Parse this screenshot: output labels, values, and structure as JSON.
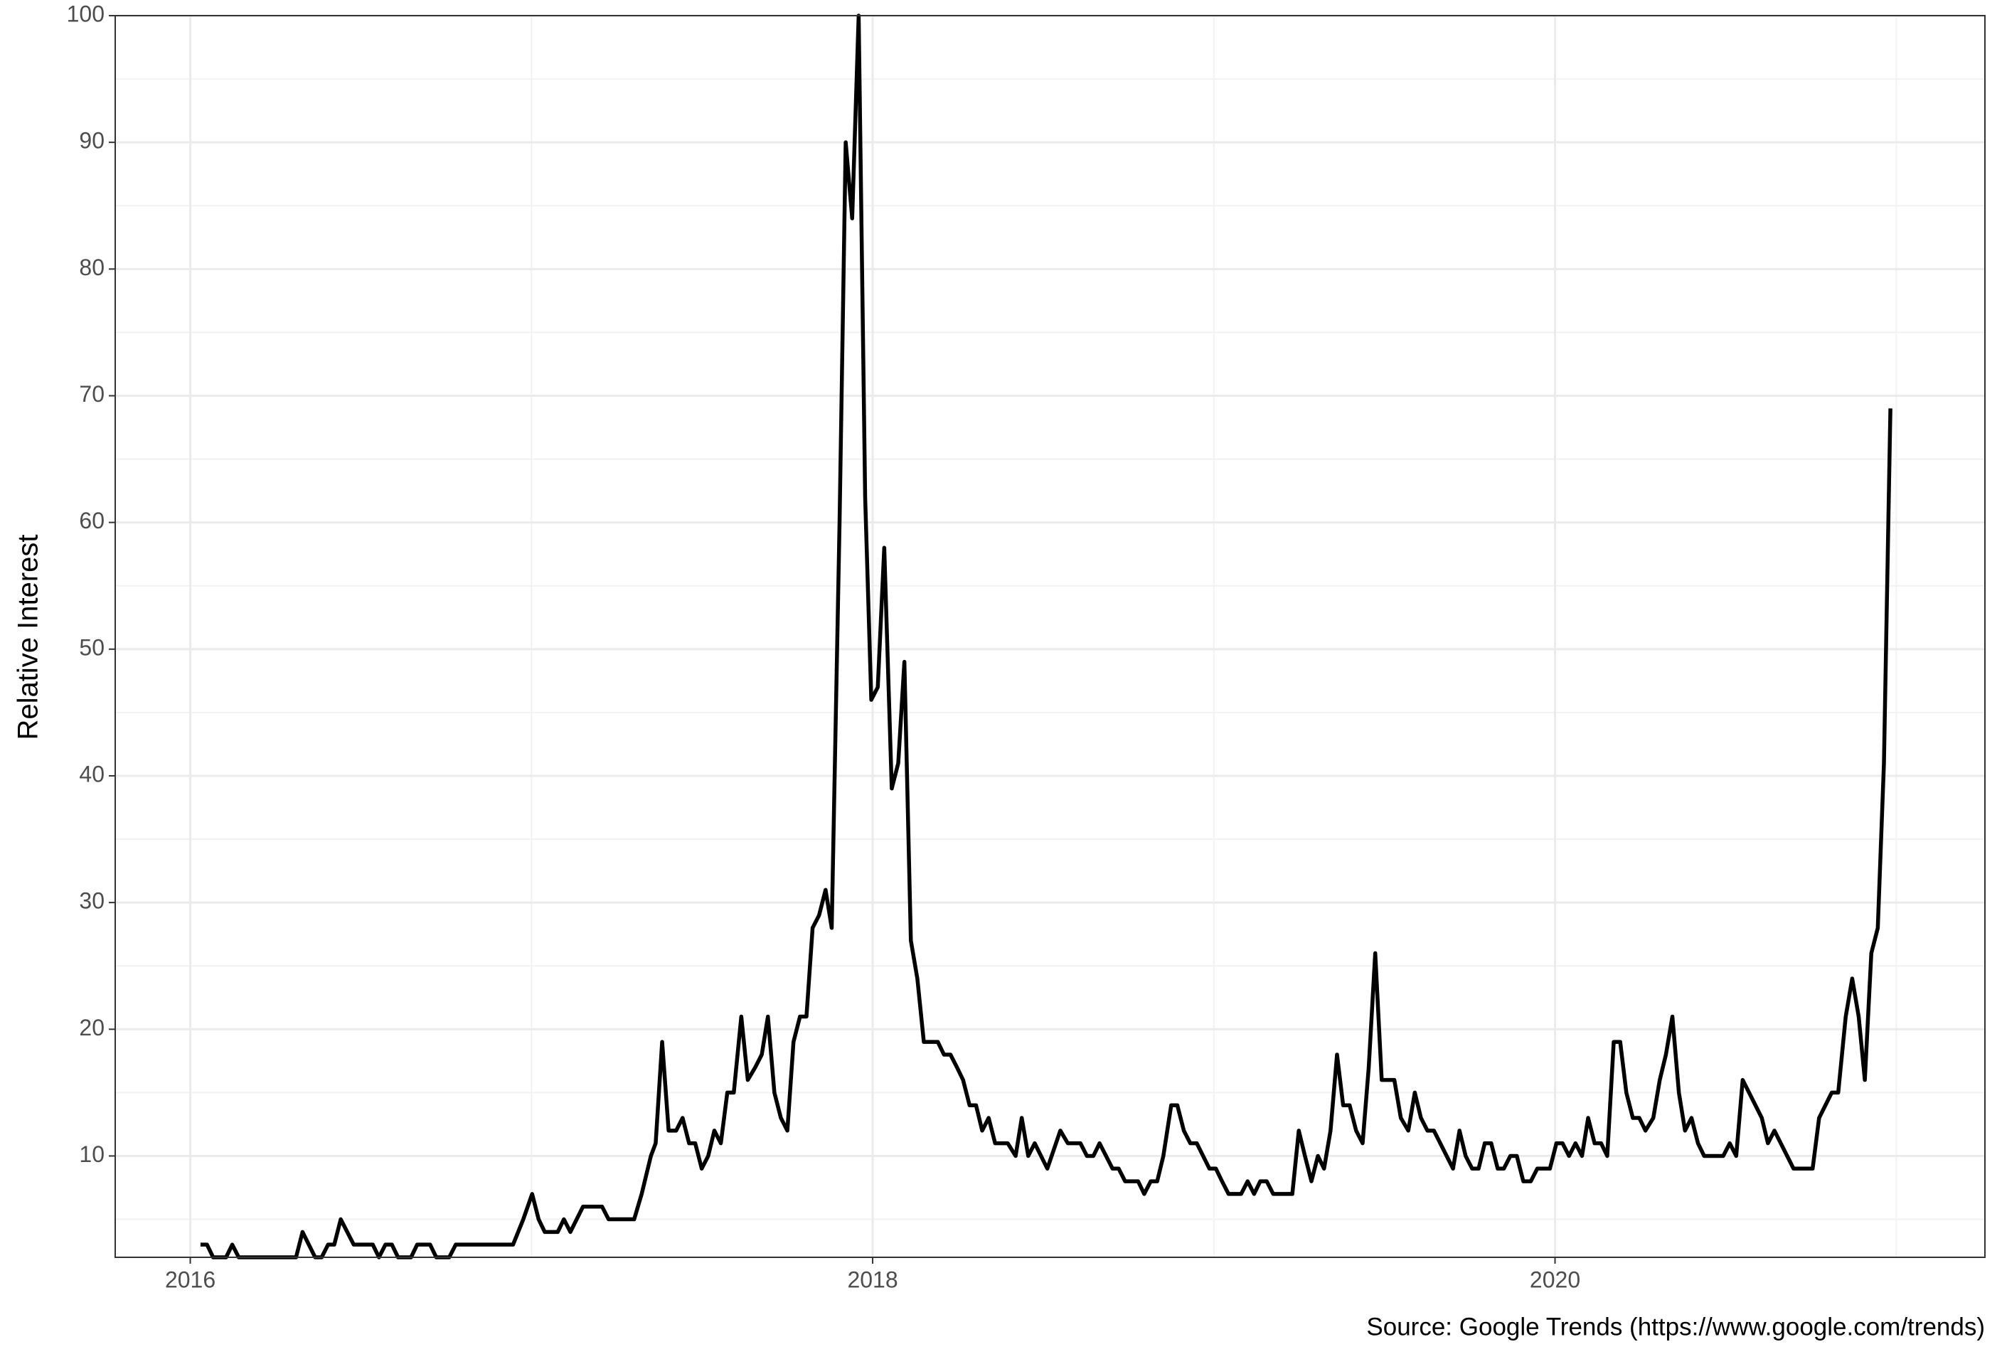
{
  "chart_data": {
    "type": "line",
    "y_label": "Relative Interest",
    "caption": "Source: Google Trends (https://www.google.com/trends)",
    "color": "#000000",
    "grid": true,
    "xlim": [
      2015.78,
      2021.26
    ],
    "xticks": [
      2016,
      2018,
      2020
    ],
    "x_minor_ticks": [
      2017,
      2019,
      2021
    ],
    "ylim": [
      2,
      100
    ],
    "yticks": [
      10,
      20,
      30,
      40,
      50,
      60,
      70,
      80,
      90,
      100
    ],
    "y_minor_ticks": [
      5,
      15,
      25,
      35,
      45,
      55,
      65,
      75,
      85,
      95
    ],
    "x": [
      2016.03,
      2016.049,
      2016.067,
      2016.105,
      2016.123,
      2016.142,
      2016.31,
      2016.329,
      2016.366,
      2016.385,
      2016.404,
      2016.422,
      2016.441,
      2016.479,
      2016.535,
      2016.553,
      2016.572,
      2016.591,
      2016.609,
      2016.647,
      2016.665,
      2016.703,
      2016.721,
      2016.759,
      2016.778,
      2016.946,
      2016.976,
      2017.002,
      2017.021,
      2017.039,
      2017.077,
      2017.095,
      2017.114,
      2017.151,
      2017.207,
      2017.226,
      2017.301,
      2017.323,
      2017.35,
      2017.364,
      2017.383,
      2017.402,
      2017.424,
      2017.443,
      2017.462,
      2017.48,
      2017.499,
      2017.518,
      2017.536,
      2017.555,
      2017.574,
      2017.593,
      2017.615,
      2017.634,
      2017.656,
      2017.675,
      2017.693,
      2017.712,
      2017.731,
      2017.75,
      2017.768,
      2017.787,
      2017.806,
      2017.824,
      2017.843,
      2017.862,
      2017.88,
      2017.903,
      2017.921,
      2017.94,
      2017.959,
      2017.978,
      2017.996,
      2018.015,
      2018.034,
      2018.056,
      2018.075,
      2018.093,
      2018.112,
      2018.131,
      2018.15,
      2018.191,
      2018.209,
      2018.228,
      2018.247,
      2018.265,
      2018.284,
      2018.303,
      2018.321,
      2018.34,
      2018.359,
      2018.396,
      2018.419,
      2018.437,
      2018.456,
      2018.475,
      2018.512,
      2018.55,
      2018.572,
      2018.609,
      2018.628,
      2018.647,
      2018.665,
      2018.703,
      2018.721,
      2018.74,
      2018.778,
      2018.796,
      2018.815,
      2018.834,
      2018.852,
      2018.875,
      2018.893,
      2018.912,
      2018.931,
      2018.95,
      2018.987,
      2019.006,
      2019.024,
      2019.043,
      2019.08,
      2019.099,
      2019.118,
      2019.136,
      2019.155,
      2019.174,
      2019.23,
      2019.249,
      2019.267,
      2019.286,
      2019.305,
      2019.323,
      2019.342,
      2019.361,
      2019.379,
      2019.398,
      2019.417,
      2019.436,
      2019.454,
      2019.473,
      2019.492,
      2019.529,
      2019.548,
      2019.57,
      2019.589,
      2019.607,
      2019.626,
      2019.645,
      2019.701,
      2019.72,
      2019.738,
      2019.757,
      2019.776,
      2019.794,
      2019.813,
      2019.832,
      2019.85,
      2019.869,
      2019.888,
      2019.907,
      2019.929,
      2019.948,
      2019.985,
      2020.004,
      2020.022,
      2020.041,
      2020.06,
      2020.079,
      2020.097,
      2020.116,
      2020.135,
      2020.153,
      2020.172,
      2020.191,
      2020.209,
      2020.228,
      2020.247,
      2020.265,
      2020.288,
      2020.307,
      2020.325,
      2020.344,
      2020.363,
      2020.381,
      2020.4,
      2020.419,
      2020.437,
      2020.493,
      2020.512,
      2020.531,
      2020.55,
      2020.606,
      2020.624,
      2020.643,
      2020.699,
      2020.755,
      2020.774,
      2020.811,
      2020.83,
      2020.852,
      2020.871,
      2020.89,
      2020.908,
      2020.927,
      2020.946,
      2020.964,
      2020.983
    ],
    "values": [
      3,
      3,
      2,
      2,
      3,
      2,
      2,
      4,
      2,
      2,
      3,
      3,
      5,
      3,
      3,
      2,
      3,
      3,
      2,
      2,
      3,
      3,
      2,
      2,
      3,
      3,
      5,
      7,
      5,
      4,
      4,
      5,
      4,
      6,
      6,
      5,
      5,
      7,
      10,
      11,
      19,
      12,
      12,
      13,
      11,
      11,
      9,
      10,
      12,
      11,
      15,
      15,
      21,
      16,
      17,
      18,
      21,
      15,
      13,
      12,
      19,
      21,
      21,
      28,
      29,
      31,
      28,
      60,
      90,
      84,
      100,
      62,
      46,
      47,
      58,
      39,
      41,
      49,
      27,
      24,
      19,
      19,
      18,
      18,
      17,
      16,
      14,
      14,
      12,
      13,
      11,
      11,
      10,
      13,
      10,
      11,
      9,
      12,
      11,
      11,
      10,
      10,
      11,
      9,
      9,
      8,
      8,
      7,
      8,
      8,
      10,
      14,
      14,
      12,
      11,
      11,
      9,
      9,
      8,
      7,
      7,
      8,
      7,
      8,
      8,
      7,
      7,
      12,
      10,
      8,
      10,
      9,
      12,
      18,
      14,
      14,
      12,
      11,
      17,
      26,
      16,
      16,
      13,
      12,
      15,
      13,
      12,
      12,
      9,
      12,
      10,
      9,
      9,
      11,
      11,
      9,
      9,
      10,
      10,
      8,
      8,
      9,
      9,
      11,
      11,
      10,
      11,
      10,
      13,
      11,
      11,
      10,
      19,
      19,
      15,
      13,
      13,
      12,
      13,
      16,
      18,
      21,
      15,
      12,
      13,
      11,
      10,
      10,
      11,
      10,
      16,
      13,
      11,
      12,
      9,
      9,
      13,
      15,
      15,
      21,
      24,
      21,
      16,
      26,
      28,
      41,
      69
    ]
  }
}
